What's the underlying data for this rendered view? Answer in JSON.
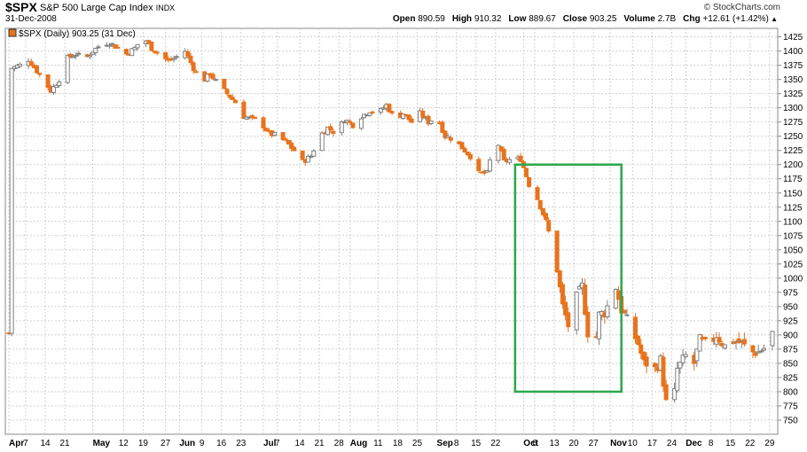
{
  "header": {
    "symbol": "$SPX",
    "name": "S&P 500 Large Cap Index",
    "exchange": "INDX",
    "date": "31-Dec-2008",
    "brand": "© StockCharts.com",
    "quote": [
      {
        "label": "Open",
        "value": "890.59"
      },
      {
        "label": "High",
        "value": "910.32"
      },
      {
        "label": "Low",
        "value": "889.67"
      },
      {
        "label": "Close",
        "value": "903.25"
      },
      {
        "label": "Volume",
        "value": "2.7B"
      },
      {
        "label": "Chg",
        "value": "+12.61 (+1.42%)"
      }
    ],
    "chg_arrow_icon": "triangle-up-icon"
  },
  "legend": {
    "text": "$SPX (Daily) 903.25 (31 Dec)"
  },
  "colors": {
    "up": "#808080",
    "down": "#e8731c",
    "box": "#2aa84a",
    "grid": "#d0d0d0"
  },
  "chart_data": {
    "type": "candlestick",
    "ylim": [
      725,
      1440
    ],
    "yticks": [
      750,
      775,
      800,
      825,
      850,
      875,
      900,
      925,
      950,
      975,
      1000,
      1025,
      1050,
      1075,
      1100,
      1125,
      1150,
      1175,
      1200,
      1225,
      1250,
      1275,
      1300,
      1325,
      1350,
      1375,
      1400,
      1425
    ],
    "x_range_days": [
      0,
      273
    ],
    "x_ticks": [
      {
        "day": 0,
        "label": "Apr",
        "month": true
      },
      {
        "day": 6,
        "label": "7",
        "month": false
      },
      {
        "day": 13,
        "label": "14",
        "month": false
      },
      {
        "day": 20,
        "label": "21",
        "month": false
      },
      {
        "day": 30,
        "label": "May",
        "month": true
      },
      {
        "day": 41,
        "label": "12",
        "month": false
      },
      {
        "day": 48,
        "label": "19",
        "month": false
      },
      {
        "day": 56,
        "label": "27",
        "month": false
      },
      {
        "day": 61,
        "label": "Jun",
        "month": true
      },
      {
        "day": 69,
        "label": "9",
        "month": false
      },
      {
        "day": 76,
        "label": "16",
        "month": false
      },
      {
        "day": 83,
        "label": "23",
        "month": false
      },
      {
        "day": 91,
        "label": "Jul",
        "month": true
      },
      {
        "day": 96,
        "label": "7",
        "month": false
      },
      {
        "day": 104,
        "label": "14",
        "month": false
      },
      {
        "day": 111,
        "label": "21",
        "month": false
      },
      {
        "day": 118,
        "label": "28",
        "month": false
      },
      {
        "day": 122,
        "label": "Aug",
        "month": true
      },
      {
        "day": 132,
        "label": "11",
        "month": false
      },
      {
        "day": 139,
        "label": "18",
        "month": false
      },
      {
        "day": 146,
        "label": "25",
        "month": false
      },
      {
        "day": 153,
        "label": "Sep",
        "month": true
      },
      {
        "day": 160,
        "label": "8",
        "month": false
      },
      {
        "day": 167,
        "label": "15",
        "month": false
      },
      {
        "day": 174,
        "label": "22",
        "month": false
      },
      {
        "day": 184,
        "label": "Oct",
        "month": true
      },
      {
        "day": 188,
        "label": "6",
        "month": false
      },
      {
        "day": 195,
        "label": "13",
        "month": false
      },
      {
        "day": 202,
        "label": "20",
        "month": false
      },
      {
        "day": 209,
        "label": "27",
        "month": false
      },
      {
        "day": 215,
        "label": "Nov",
        "month": true
      },
      {
        "day": 223,
        "label": "10",
        "month": false
      },
      {
        "day": 230,
        "label": "17",
        "month": false
      },
      {
        "day": 237,
        "label": "24",
        "month": false
      },
      {
        "day": 242,
        "label": "Dec",
        "month": true
      },
      {
        "day": 251,
        "label": "8",
        "month": false
      },
      {
        "day": 258,
        "label": "15",
        "month": false
      },
      {
        "day": 265,
        "label": "22",
        "month": false
      },
      {
        "day": 272,
        "label": "29",
        "month": false
      }
    ],
    "close_path": [
      [
        1,
        1370
      ],
      [
        4,
        1375
      ],
      [
        7,
        1385
      ],
      [
        10,
        1365
      ],
      [
        13,
        1345
      ],
      [
        15,
        1330
      ],
      [
        18,
        1350
      ],
      [
        21,
        1388
      ],
      [
        24,
        1395
      ],
      [
        27,
        1385
      ],
      [
        30,
        1400
      ],
      [
        33,
        1412
      ],
      [
        36,
        1415
      ],
      [
        39,
        1405
      ],
      [
        42,
        1395
      ],
      [
        45,
        1405
      ],
      [
        48,
        1425
      ],
      [
        51,
        1405
      ],
      [
        54,
        1395
      ],
      [
        57,
        1382
      ],
      [
        60,
        1390
      ],
      [
        63,
        1400
      ],
      [
        66,
        1370
      ],
      [
        69,
        1345
      ],
      [
        72,
        1360
      ],
      [
        75,
        1340
      ],
      [
        78,
        1325
      ],
      [
        81,
        1310
      ],
      [
        84,
        1285
      ],
      [
        87,
        1280
      ],
      [
        90,
        1275
      ],
      [
        93,
        1255
      ],
      [
        96,
        1250
      ],
      [
        99,
        1240
      ],
      [
        102,
        1225
      ],
      [
        105,
        1205
      ],
      [
        108,
        1215
      ],
      [
        111,
        1250
      ],
      [
        114,
        1265
      ],
      [
        117,
        1255
      ],
      [
        120,
        1280
      ],
      [
        123,
        1270
      ],
      [
        126,
        1285
      ],
      [
        129,
        1295
      ],
      [
        132,
        1290
      ],
      [
        135,
        1305
      ],
      [
        138,
        1280
      ],
      [
        141,
        1290
      ],
      [
        144,
        1275
      ],
      [
        147,
        1290
      ],
      [
        150,
        1275
      ],
      [
        153,
        1285
      ],
      [
        156,
        1250
      ],
      [
        159,
        1245
      ],
      [
        162,
        1230
      ],
      [
        165,
        1215
      ],
      [
        168,
        1185
      ],
      [
        171,
        1185
      ],
      [
        174,
        1250
      ],
      [
        177,
        1205
      ],
      [
        180,
        1210
      ],
      [
        183,
        1210
      ],
      [
        186,
        1165
      ],
      [
        189,
        1140
      ],
      [
        192,
        1100
      ],
      [
        195,
        1045
      ],
      [
        198,
        950
      ],
      [
        201,
        900
      ],
      [
        203,
        965
      ],
      [
        205,
        985
      ],
      [
        207,
        905
      ],
      [
        209,
        860
      ],
      [
        211,
        935
      ],
      [
        213,
        940
      ],
      [
        215,
        960
      ],
      [
        217,
        985
      ],
      [
        219,
        945
      ],
      [
        221,
        925
      ],
      [
        223,
        905
      ],
      [
        225,
        885
      ],
      [
        227,
        850
      ],
      [
        229,
        850
      ],
      [
        231,
        840
      ],
      [
        233,
        855
      ],
      [
        235,
        780
      ],
      [
        237,
        755
      ],
      [
        239,
        840
      ],
      [
        241,
        855
      ],
      [
        243,
        870
      ],
      [
        245,
        850
      ],
      [
        247,
        890
      ],
      [
        250,
        880
      ],
      [
        253,
        900
      ],
      [
        256,
        880
      ],
      [
        259,
        890
      ],
      [
        262,
        885
      ],
      [
        265,
        870
      ],
      [
        268,
        870
      ],
      [
        271,
        880
      ],
      [
        273,
        903
      ]
    ],
    "boxes": [
      {
        "x0_day": 181,
        "x1_day": 219,
        "y0": 800,
        "y1": 1200
      }
    ],
    "last_close": 903.25
  }
}
